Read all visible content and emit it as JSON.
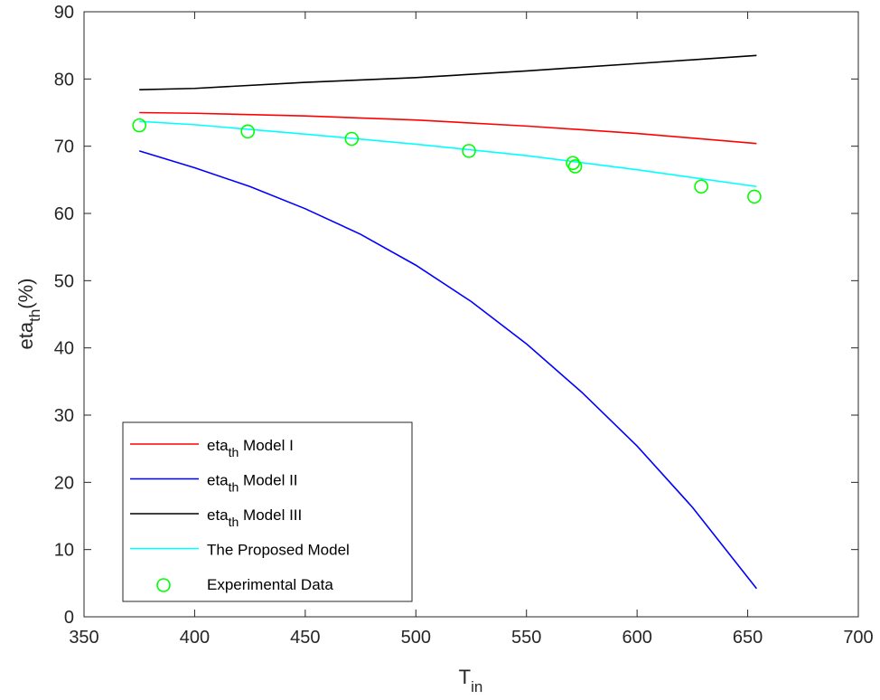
{
  "chart_data": {
    "type": "line",
    "xlabel": {
      "main": "T",
      "sub": "in"
    },
    "ylabel": {
      "main": "eta",
      "sub": "th",
      "suffix": "(%)"
    },
    "xlim": [
      350,
      700
    ],
    "ylim": [
      0,
      90
    ],
    "xticks": [
      350,
      400,
      450,
      500,
      550,
      600,
      650,
      700
    ],
    "yticks": [
      0,
      10,
      20,
      30,
      40,
      50,
      60,
      70,
      80,
      90
    ],
    "grid": false,
    "legend_position": "bottom-left",
    "series": [
      {
        "name": "eta_th Model I",
        "label_parts": {
          "main": "eta",
          "sub": "th",
          "suffix": " Model I"
        },
        "color": "#ff0000",
        "style": "line",
        "x": [
          375,
          400,
          450,
          500,
          550,
          600,
          654
        ],
        "y": [
          75.0,
          74.9,
          74.5,
          73.9,
          73.0,
          71.9,
          70.4
        ]
      },
      {
        "name": "eta_th Model II",
        "label_parts": {
          "main": "eta",
          "sub": "th",
          "suffix": " Model II"
        },
        "color": "#0000ff",
        "style": "line",
        "x": [
          375,
          400,
          425,
          450,
          475,
          500,
          525,
          550,
          575,
          600,
          625,
          654
        ],
        "y": [
          69.3,
          66.8,
          64.0,
          60.7,
          56.9,
          52.3,
          46.9,
          40.6,
          33.4,
          25.4,
          16.3,
          4.2
        ]
      },
      {
        "name": "eta_th Model III",
        "label_parts": {
          "main": "eta",
          "sub": "th",
          "suffix": " Model III"
        },
        "color": "#000000",
        "style": "line",
        "x": [
          375,
          400,
          450,
          500,
          550,
          600,
          654
        ],
        "y": [
          78.4,
          78.6,
          79.5,
          80.2,
          81.2,
          82.3,
          83.5
        ]
      },
      {
        "name": "The Proposed Model",
        "label_parts": {
          "main": "The Proposed Model",
          "sub": "",
          "suffix": ""
        },
        "color": "#00ffff",
        "style": "line",
        "x": [
          375,
          400,
          450,
          500,
          550,
          600,
          654
        ],
        "y": [
          73.7,
          73.2,
          71.8,
          70.3,
          68.6,
          66.5,
          64.0
        ]
      },
      {
        "name": "Experimental Data",
        "label_parts": {
          "main": "Experimental Data",
          "sub": "",
          "suffix": ""
        },
        "color": "#00ff00",
        "style": "marker",
        "marker": "circle",
        "x": [
          375,
          424,
          471,
          524,
          571,
          572,
          629,
          653
        ],
        "y": [
          73.1,
          72.2,
          71.1,
          69.3,
          67.5,
          67.0,
          64.0,
          62.5
        ]
      }
    ]
  }
}
